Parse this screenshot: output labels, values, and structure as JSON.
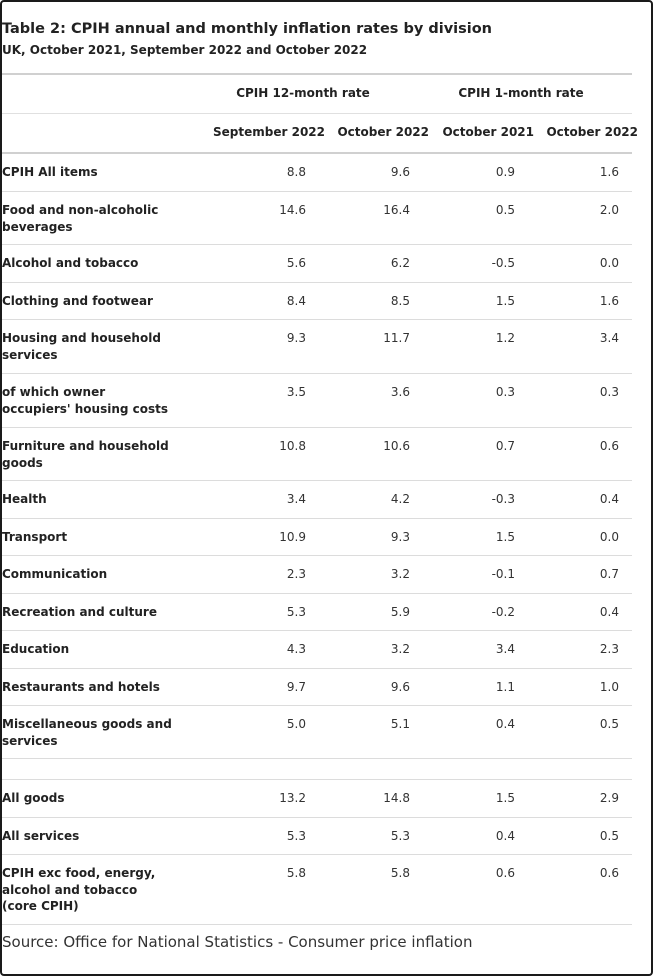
{
  "title": "Table 2: CPIH annual and monthly inflation rates by division",
  "subtitle": "UK, October 2021, September 2022 and October 2022",
  "group_headers": [
    "CPIH 12-month rate",
    "CPIH 1-month rate"
  ],
  "column_headers": [
    "September 2022",
    "October 2022",
    "October 2021",
    "October 2022"
  ],
  "rows": [
    {
      "label": "CPIH All items",
      "values": [
        "8.8",
        "9.6",
        "0.9",
        "1.6"
      ]
    },
    {
      "label": "Food and non-alcoholic beverages",
      "values": [
        "14.6",
        "16.4",
        "0.5",
        "2.0"
      ]
    },
    {
      "label": "Alcohol and tobacco",
      "values": [
        "5.6",
        "6.2",
        "-0.5",
        "0.0"
      ]
    },
    {
      "label": "Clothing and footwear",
      "values": [
        "8.4",
        "8.5",
        "1.5",
        "1.6"
      ]
    },
    {
      "label": "Housing and household services",
      "values": [
        "9.3",
        "11.7",
        "1.2",
        "3.4"
      ]
    },
    {
      "label": "of which owner occupiers' housing costs",
      "values": [
        "3.5",
        "3.6",
        "0.3",
        "0.3"
      ]
    },
    {
      "label": "Furniture and household goods",
      "values": [
        "10.8",
        "10.6",
        "0.7",
        "0.6"
      ]
    },
    {
      "label": "Health",
      "values": [
        "3.4",
        "4.2",
        "-0.3",
        "0.4"
      ]
    },
    {
      "label": "Transport",
      "values": [
        "10.9",
        "9.3",
        "1.5",
        "0.0"
      ]
    },
    {
      "label": "Communication",
      "values": [
        "2.3",
        "3.2",
        "-0.1",
        "0.7"
      ]
    },
    {
      "label": "Recreation and culture",
      "values": [
        "5.3",
        "5.9",
        "-0.2",
        "0.4"
      ]
    },
    {
      "label": "Education",
      "values": [
        "4.3",
        "3.2",
        "3.4",
        "2.3"
      ]
    },
    {
      "label": "Restaurants and hotels",
      "values": [
        "9.7",
        "9.6",
        "1.1",
        "1.0"
      ]
    },
    {
      "label": "Miscellaneous goods and services",
      "values": [
        "5.0",
        "5.1",
        "0.4",
        "0.5"
      ]
    },
    {
      "label": "",
      "values": [
        "",
        "",
        "",
        ""
      ]
    },
    {
      "label": "All goods",
      "values": [
        "13.2",
        "14.8",
        "1.5",
        "2.9"
      ]
    },
    {
      "label": "All services",
      "values": [
        "5.3",
        "5.3",
        "0.4",
        "0.5"
      ]
    },
    {
      "label": "CPIH exc food, energy, alcohol and tobacco (core CPIH)",
      "values": [
        "5.8",
        "5.8",
        "0.6",
        "0.6"
      ]
    }
  ],
  "source": "Source: Office for National Statistics - Consumer price inflation"
}
